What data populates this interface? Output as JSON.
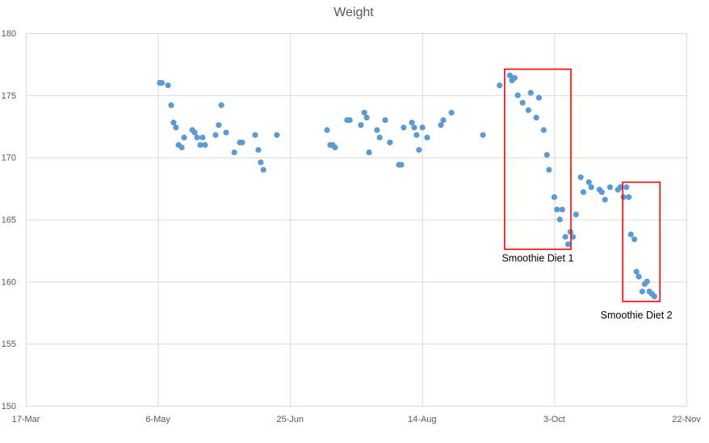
{
  "chart_data": {
    "type": "scatter",
    "title": "Weight",
    "xlabel": "",
    "ylabel": "",
    "x_unit": "days since 17-Mar",
    "xlim": [
      0,
      250
    ],
    "ylim": [
      150,
      180
    ],
    "x_ticks": [
      {
        "value": 0,
        "label": "17-Mar"
      },
      {
        "value": 50,
        "label": "6-May"
      },
      {
        "value": 100,
        "label": "25-Jun"
      },
      {
        "value": 150,
        "label": "14-Aug"
      },
      {
        "value": 200,
        "label": "3-Oct"
      },
      {
        "value": 250,
        "label": "22-Nov"
      }
    ],
    "y_ticks": [
      150,
      155,
      160,
      165,
      170,
      175,
      180
    ],
    "grid": true,
    "color": "#5b9bd5",
    "points": [
      [
        50.7,
        176.0
      ],
      [
        51.5,
        176.0
      ],
      [
        53.8,
        175.8
      ],
      [
        55,
        174.2
      ],
      [
        55.9,
        172.8
      ],
      [
        56.8,
        172.4
      ],
      [
        57.8,
        171.0
      ],
      [
        59,
        170.8
      ],
      [
        59.9,
        171.6
      ],
      [
        63,
        172.2
      ],
      [
        63.9,
        172.0
      ],
      [
        64.8,
        171.6
      ],
      [
        66,
        171.0
      ],
      [
        66.9,
        171.6
      ],
      [
        67.8,
        171.0
      ],
      [
        71.8,
        171.8
      ],
      [
        73,
        172.6
      ],
      [
        74,
        174.2
      ],
      [
        75.8,
        172.0
      ],
      [
        78.9,
        170.4
      ],
      [
        81,
        171.2
      ],
      [
        81.9,
        171.2
      ],
      [
        86.8,
        171.8
      ],
      [
        88,
        170.6
      ],
      [
        88.9,
        169.6
      ],
      [
        89.9,
        169.0
      ],
      [
        95,
        171.8
      ],
      [
        114,
        172.2
      ],
      [
        115.2,
        171.0
      ],
      [
        116.1,
        171.0
      ],
      [
        117,
        170.8
      ],
      [
        121.6,
        173.0
      ],
      [
        122.6,
        173.0
      ],
      [
        126.8,
        172.6
      ],
      [
        128.1,
        173.6
      ],
      [
        129,
        173.2
      ],
      [
        129.9,
        170.4
      ],
      [
        132.9,
        172.2
      ],
      [
        133.9,
        171.6
      ],
      [
        136,
        173.0
      ],
      [
        137.8,
        171.2
      ],
      [
        141.2,
        169.4
      ],
      [
        142.1,
        169.4
      ],
      [
        143,
        172.4
      ],
      [
        146.1,
        172.8
      ],
      [
        147,
        172.4
      ],
      [
        147.9,
        171.8
      ],
      [
        148.8,
        170.6
      ],
      [
        150.1,
        172.4
      ],
      [
        151.9,
        171.6
      ],
      [
        157.1,
        172.6
      ],
      [
        158,
        173.0
      ],
      [
        161.1,
        173.6
      ],
      [
        173,
        171.8
      ],
      [
        179.3,
        175.8
      ],
      [
        183.2,
        176.6
      ],
      [
        184,
        176.2
      ],
      [
        185,
        176.4
      ],
      [
        186.2,
        175.0
      ],
      [
        188,
        174.4
      ],
      [
        190.2,
        173.8
      ],
      [
        191.1,
        175.2
      ],
      [
        193.2,
        173.2
      ],
      [
        194.2,
        174.8
      ],
      [
        196,
        172.2
      ],
      [
        197.2,
        170.2
      ],
      [
        198,
        169.0
      ],
      [
        200,
        166.8
      ],
      [
        201,
        165.8
      ],
      [
        202.1,
        165.0
      ],
      [
        203,
        165.8
      ],
      [
        204.2,
        163.6
      ],
      [
        205.2,
        163.0
      ],
      [
        206.1,
        164.0
      ],
      [
        207.1,
        163.6
      ],
      [
        208.2,
        165.4
      ],
      [
        210,
        168.4
      ],
      [
        211,
        167.2
      ],
      [
        213.1,
        168.0
      ],
      [
        214,
        167.6
      ],
      [
        217.1,
        167.4
      ],
      [
        218,
        167.2
      ],
      [
        219.2,
        166.6
      ],
      [
        221.1,
        167.6
      ],
      [
        224.1,
        167.4
      ],
      [
        225,
        167.6
      ],
      [
        226.2,
        166.8
      ],
      [
        227.3,
        167.6
      ],
      [
        228.2,
        166.8
      ],
      [
        229,
        163.8
      ],
      [
        230.3,
        163.4
      ],
      [
        231.1,
        160.8
      ],
      [
        232,
        160.4
      ],
      [
        233.3,
        159.2
      ],
      [
        234.2,
        159.8
      ],
      [
        235.1,
        160.0
      ],
      [
        236,
        159.2
      ],
      [
        237,
        159.0
      ],
      [
        237.9,
        158.8
      ]
    ],
    "annotations": [
      {
        "label": "Smoothie Diet 1",
        "x_range": [
          181.2,
          206.3
        ],
        "y_range": [
          162.6,
          177.1
        ],
        "color": "#ff0000"
      },
      {
        "label": "Smoothie Diet 2",
        "x_range": [
          225.9,
          240.0
        ],
        "y_range": [
          158.4,
          168.0
        ],
        "color": "#ff0000"
      }
    ]
  }
}
